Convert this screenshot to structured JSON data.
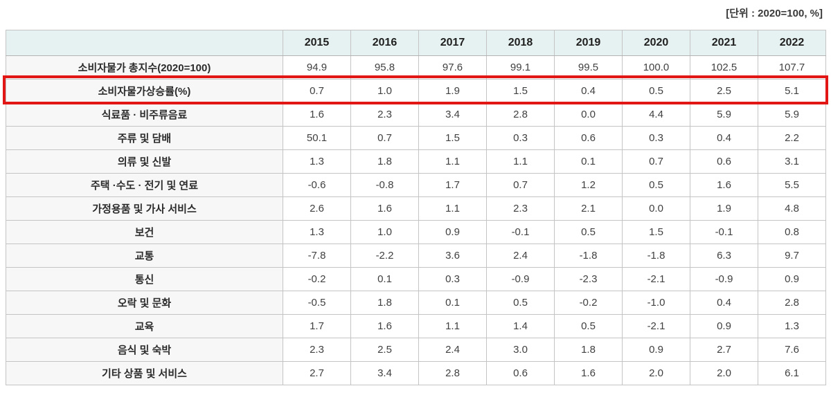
{
  "unit_label": "[단위 : 2020=100, %]",
  "colors": {
    "header_bg": "#e6f2f1",
    "label_col_bg": "#f7f7f7",
    "cell_bg": "#ffffff",
    "grid_border": "#c4c4c4",
    "highlight_border": "#e31616"
  },
  "chart_data": {
    "type": "table",
    "unit": "[단위 : 2020=100, %]",
    "columns": [
      "2015",
      "2016",
      "2017",
      "2018",
      "2019",
      "2020",
      "2021",
      "2022"
    ],
    "rows": [
      {
        "label": "소비자물가 총지수(2020=100)",
        "highlighted": false,
        "values": [
          "94.9",
          "95.8",
          "97.6",
          "99.1",
          "99.5",
          "100.0",
          "102.5",
          "107.7"
        ]
      },
      {
        "label": "소비자물가상승률(%)",
        "highlighted": true,
        "values": [
          "0.7",
          "1.0",
          "1.9",
          "1.5",
          "0.4",
          "0.5",
          "2.5",
          "5.1"
        ]
      },
      {
        "label": "식료품 · 비주류음료",
        "highlighted": false,
        "values": [
          "1.6",
          "2.3",
          "3.4",
          "2.8",
          "0.0",
          "4.4",
          "5.9",
          "5.9"
        ]
      },
      {
        "label": "주류 및 담배",
        "highlighted": false,
        "values": [
          "50.1",
          "0.7",
          "1.5",
          "0.3",
          "0.6",
          "0.3",
          "0.4",
          "2.2"
        ]
      },
      {
        "label": "의류 및 신발",
        "highlighted": false,
        "values": [
          "1.3",
          "1.8",
          "1.1",
          "1.1",
          "0.1",
          "0.7",
          "0.6",
          "3.1"
        ]
      },
      {
        "label": "주택 ·수도 · 전기 및 연료",
        "highlighted": false,
        "values": [
          "-0.6",
          "-0.8",
          "1.7",
          "0.7",
          "1.2",
          "0.5",
          "1.6",
          "5.5"
        ]
      },
      {
        "label": "가정용품 및 가사 서비스",
        "highlighted": false,
        "values": [
          "2.6",
          "1.6",
          "1.1",
          "2.3",
          "2.1",
          "0.0",
          "1.9",
          "4.8"
        ]
      },
      {
        "label": "보건",
        "highlighted": false,
        "values": [
          "1.3",
          "1.0",
          "0.9",
          "-0.1",
          "0.5",
          "1.5",
          "-0.1",
          "0.8"
        ]
      },
      {
        "label": "교통",
        "highlighted": false,
        "values": [
          "-7.8",
          "-2.2",
          "3.6",
          "2.4",
          "-1.8",
          "-1.8",
          "6.3",
          "9.7"
        ]
      },
      {
        "label": "통신",
        "highlighted": false,
        "values": [
          "-0.2",
          "0.1",
          "0.3",
          "-0.9",
          "-2.3",
          "-2.1",
          "-0.9",
          "0.9"
        ]
      },
      {
        "label": "오락 및 문화",
        "highlighted": false,
        "values": [
          "-0.5",
          "1.8",
          "0.1",
          "0.5",
          "-0.2",
          "-1.0",
          "0.4",
          "2.8"
        ]
      },
      {
        "label": "교육",
        "highlighted": false,
        "values": [
          "1.7",
          "1.6",
          "1.1",
          "1.4",
          "0.5",
          "-2.1",
          "0.9",
          "1.3"
        ]
      },
      {
        "label": "음식 및 숙박",
        "highlighted": false,
        "values": [
          "2.3",
          "2.5",
          "2.4",
          "3.0",
          "1.8",
          "0.9",
          "2.7",
          "7.6"
        ]
      },
      {
        "label": "기타 상품 및 서비스",
        "highlighted": false,
        "values": [
          "2.7",
          "3.4",
          "2.8",
          "0.6",
          "1.6",
          "2.0",
          "2.0",
          "6.1"
        ]
      }
    ]
  }
}
